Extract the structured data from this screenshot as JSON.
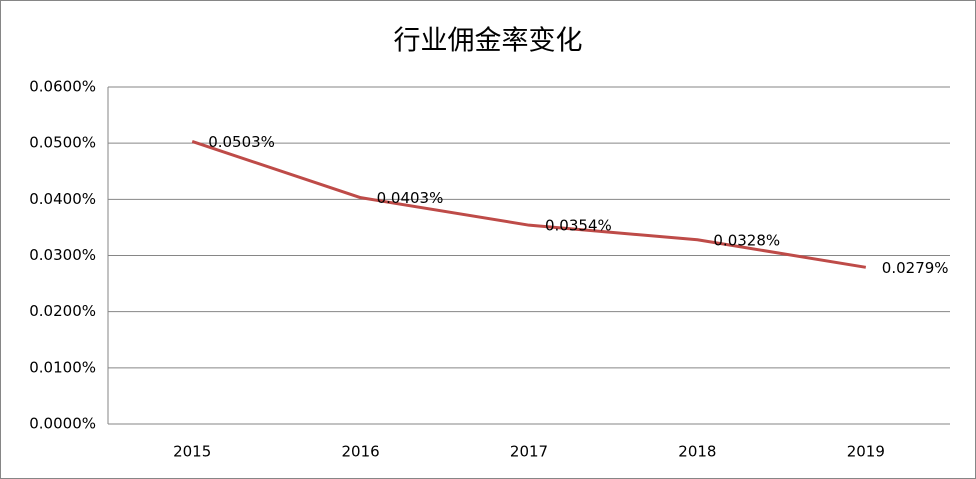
{
  "chart_data": {
    "type": "line",
    "title": "行业佣金率变化",
    "categories": [
      "2015",
      "2016",
      "2017",
      "2018",
      "2019"
    ],
    "values": [
      0.0503,
      0.0403,
      0.0354,
      0.0328,
      0.0279
    ],
    "value_labels": [
      "0.0503%",
      "0.0403%",
      "0.0354%",
      "0.0328%",
      "0.0279%"
    ],
    "color": "#be4b48",
    "ylim": [
      0,
      0.06
    ],
    "yticks": [
      {
        "value": 0,
        "label": "0.0000%"
      },
      {
        "value": 0.01,
        "label": "0.0100%"
      },
      {
        "value": 0.02,
        "label": "0.0200%"
      },
      {
        "value": 0.03,
        "label": "0.0300%"
      },
      {
        "value": 0.04,
        "label": "0.0400%"
      },
      {
        "value": 0.05,
        "label": "0.0500%"
      },
      {
        "value": 0.06,
        "label": "0.0600%"
      }
    ],
    "grid": true
  }
}
